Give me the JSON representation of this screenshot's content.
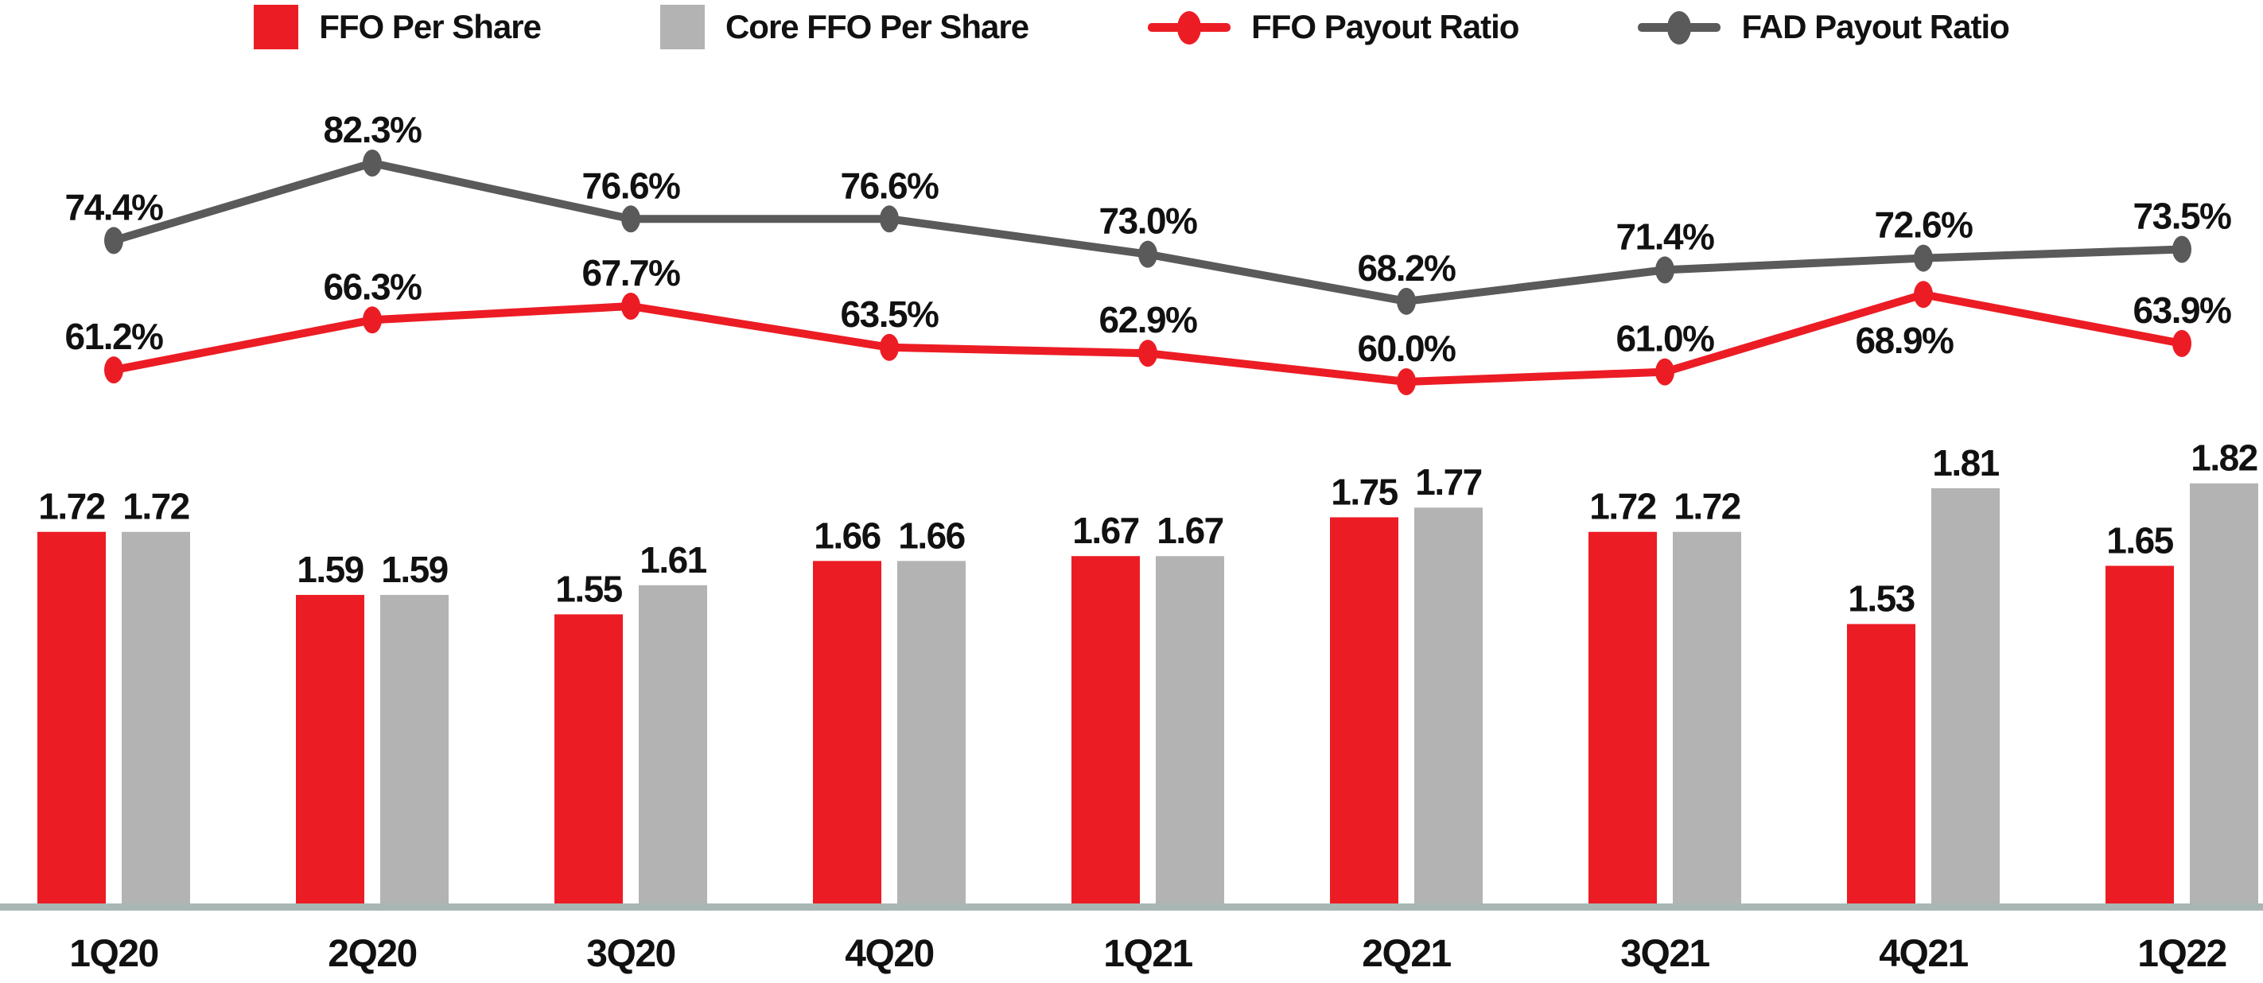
{
  "legend": {
    "items": [
      {
        "label": "FFO Per Share",
        "marker": "bar-swatch",
        "color": "#EC1C24"
      },
      {
        "label": "Core FFO Per Share",
        "marker": "bar-swatch",
        "color": "#B3B3B3"
      },
      {
        "label": "FFO Payout Ratio",
        "marker": "line-marker",
        "color": "#EC1C24"
      },
      {
        "label": "FAD Payout Ratio",
        "marker": "line-marker",
        "color": "#5A5A5A"
      }
    ]
  },
  "chart_data": {
    "type": "combo",
    "categories": [
      "1Q20",
      "2Q20",
      "3Q20",
      "4Q20",
      "1Q21",
      "2Q21",
      "3Q21",
      "4Q21",
      "1Q22"
    ],
    "series": [
      {
        "name": "FFO Per Share",
        "type": "bar",
        "color": "#EC1C24",
        "values": [
          1.72,
          1.59,
          1.55,
          1.66,
          1.67,
          1.75,
          1.72,
          1.53,
          1.65
        ]
      },
      {
        "name": "Core FFO Per Share",
        "type": "bar",
        "color": "#B3B3B3",
        "values": [
          1.72,
          1.59,
          1.61,
          1.66,
          1.67,
          1.77,
          1.72,
          1.81,
          1.82
        ]
      },
      {
        "name": "FFO Payout Ratio",
        "type": "line",
        "color": "#EC1C24",
        "values": [
          61.2,
          66.3,
          67.7,
          63.5,
          62.9,
          60.0,
          61.0,
          68.9,
          63.9
        ]
      },
      {
        "name": "FAD Payout Ratio",
        "type": "line",
        "color": "#5A5A5A",
        "values": [
          74.4,
          82.3,
          76.6,
          76.6,
          73.0,
          68.2,
          71.4,
          72.6,
          73.5
        ]
      }
    ],
    "bar_label_format": "2-decimals",
    "line_label_format": "1-decimal-percent",
    "axis_line_color": "#A8B7B4",
    "text_color": "#111111",
    "grid": false,
    "legend_position": "top",
    "y_axis_visible": false
  }
}
